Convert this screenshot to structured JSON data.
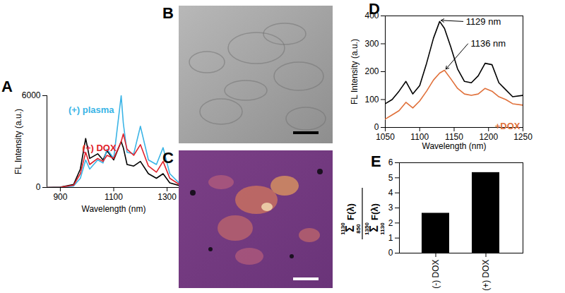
{
  "chart_data": [
    {
      "type": "line",
      "title": "A",
      "x_label": "Wavelength (nm)",
      "y_label": "FL Intensity (a.u.)",
      "x": [
        850,
        900,
        950,
        975,
        995,
        1010,
        1040,
        1060,
        1075,
        1100,
        1128,
        1136,
        1150,
        1175,
        1200,
        1230,
        1260,
        1285,
        1310,
        1350
      ],
      "series": [
        {
          "color": "#000000",
          "values": [
            0,
            20,
            200,
            1200,
            3200,
            1900,
            2200,
            1800,
            2400,
            1800,
            3000,
            2600,
            1500,
            1400,
            1700,
            900,
            600,
            900,
            300,
            100
          ]
        },
        {
          "name": "(+) plasma",
          "color": "#3ab4e6",
          "values": [
            0,
            10,
            100,
            600,
            1800,
            1200,
            1800,
            1600,
            2500,
            1900,
            6000,
            4200,
            2300,
            2200,
            4000,
            1800,
            1500,
            2600,
            900,
            200
          ]
        },
        {
          "name": "(+) DOX",
          "color": "#e0202a",
          "values": [
            0,
            15,
            150,
            900,
            2300,
            1500,
            1900,
            1700,
            2100,
            1900,
            3000,
            3500,
            2500,
            2100,
            2800,
            1400,
            1000,
            1700,
            600,
            150
          ]
        }
      ],
      "xlim": [
        850,
        1350
      ],
      "xticks": [
        900,
        1100,
        1300
      ],
      "ylim": [
        0,
        6000
      ],
      "yticks": [
        0,
        6000
      ]
    },
    {
      "type": "image",
      "title": "B"
    },
    {
      "type": "image",
      "title": "C"
    },
    {
      "type": "line",
      "title": "D",
      "x_label": "Wavelength (nm)",
      "y_label": "FL Intensity (a.u.)",
      "x": [
        1050,
        1060,
        1070,
        1080,
        1090,
        1100,
        1110,
        1120,
        1129,
        1136,
        1145,
        1155,
        1165,
        1175,
        1185,
        1195,
        1205,
        1215,
        1225,
        1235,
        1250
      ],
      "series": [
        {
          "color": "#000000",
          "values": [
            85,
            100,
            130,
            165,
            120,
            150,
            230,
            320,
            380,
            355,
            290,
            210,
            165,
            160,
            185,
            230,
            225,
            160,
            135,
            110,
            115
          ]
        },
        {
          "name": "+DOX",
          "color": "#e0703a",
          "values": [
            30,
            45,
            60,
            90,
            70,
            95,
            130,
            170,
            195,
            205,
            175,
            140,
            120,
            115,
            120,
            140,
            130,
            110,
            100,
            85,
            80
          ]
        }
      ],
      "annotations": [
        {
          "text": "1129 nm",
          "x": 1129,
          "y": 380
        },
        {
          "text": "1136 nm",
          "x": 1136,
          "y": 205
        }
      ],
      "xlim": [
        1050,
        1250
      ],
      "xticks": [
        1050,
        1100,
        1150,
        1200,
        1250
      ],
      "ylim": [
        0,
        400
      ],
      "yticks": [
        0,
        100,
        200,
        300,
        400
      ]
    },
    {
      "type": "bar",
      "title": "E",
      "categories": [
        "(-) DOX",
        "(+) DOX"
      ],
      "values": [
        2.65,
        5.35
      ],
      "color": "#000000",
      "y_label": {
        "numerator": {
          "symbol": "Σ",
          "from": "850",
          "to": "1130",
          "term": "F(λ)"
        },
        "denominator": {
          "symbol": "Σ",
          "from": "1130",
          "to": "1350",
          "term": "F(λ)"
        }
      },
      "ylim": [
        0,
        6
      ],
      "yticks": [
        0,
        1,
        2,
        3,
        4,
        5,
        6
      ]
    }
  ]
}
